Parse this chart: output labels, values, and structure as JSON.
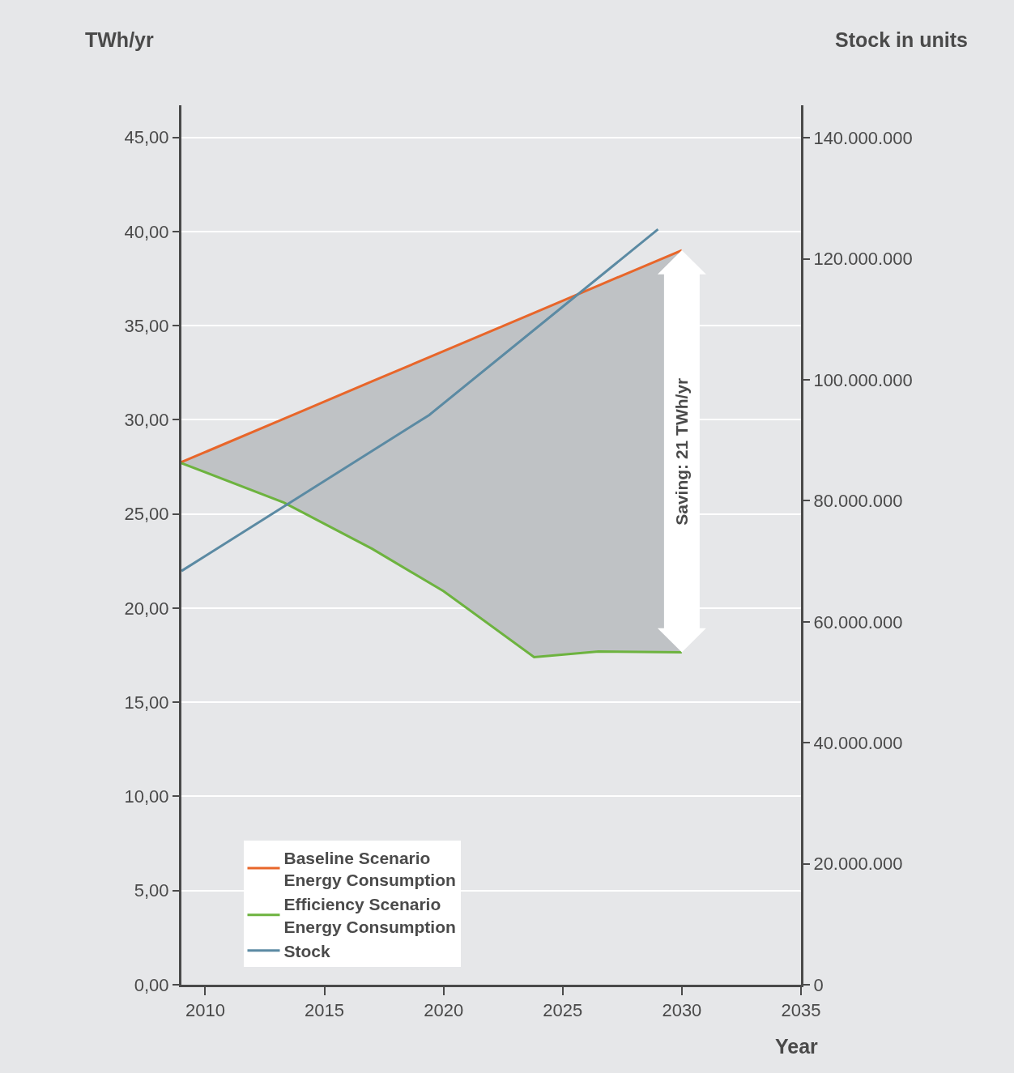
{
  "chart_data": {
    "type": "line",
    "xlabel": "Year",
    "ylabel": "TWh/yr",
    "y2label": "Stock in units",
    "xlim": [
      2009,
      2035
    ],
    "xticks": [
      2010,
      2015,
      2020,
      2025,
      2030,
      2035
    ],
    "ylim": [
      0,
      46.7
    ],
    "yticks": [
      {
        "value": 0,
        "label": "0,00"
      },
      {
        "value": 5,
        "label": "5,00"
      },
      {
        "value": 10,
        "label": "10,00"
      },
      {
        "value": 15,
        "label": "15,00"
      },
      {
        "value": 20,
        "label": "20,00"
      },
      {
        "value": 25,
        "label": "25,00"
      },
      {
        "value": 30,
        "label": "30,00"
      },
      {
        "value": 35,
        "label": "35,00"
      },
      {
        "value": 40,
        "label": "40,00"
      },
      {
        "value": 45,
        "label": "45,00"
      }
    ],
    "y2lim": [
      0,
      145400000
    ],
    "y2ticks": [
      0,
      {
        "value": 20000000,
        "label": "20.000.000"
      },
      {
        "value": 40000000,
        "label": "40.000.000"
      },
      {
        "value": 60000000,
        "label": "60.000.000"
      },
      {
        "value": 80000000,
        "label": "80.000.000"
      },
      {
        "value": 100000000,
        "label": "100.000.000"
      },
      {
        "value": 120000000,
        "label": "120.000.000"
      },
      {
        "value": 140000000,
        "label": "140.000.000"
      }
    ],
    "series": [
      {
        "name": "Baseline Scenario Energy Consumption",
        "color": "#e8662a",
        "x": [
          2009,
          2013.3,
          2017,
          2020,
          2023.8,
          2026.5,
          2030
        ],
        "values": [
          27.75,
          30.05,
          32.04,
          33.64,
          35.68,
          37.13,
          39.0
        ],
        "lower": [
          27.7,
          25.6,
          23.15,
          20.9,
          17.4,
          17.7,
          17.65
        ],
        "upper": [
          27.75,
          30.05,
          32.04,
          33.64,
          35.68,
          37.13,
          39.0
        ]
      },
      {
        "name": "Efficiency Scenario Energy Consumption",
        "color": "#6db33f",
        "x": [
          2009,
          2013.3,
          2017,
          2020,
          2023.8,
          2026.5,
          2030
        ],
        "values": [
          27.7,
          25.6,
          23.15,
          20.9,
          17.4,
          17.7,
          17.65
        ]
      },
      {
        "name": "Stock",
        "color": "#5b8aa3",
        "axis": "y2",
        "x": [
          2009,
          2019.4,
          2029
        ],
        "values": [
          68400000,
          94200000,
          124900000
        ]
      }
    ],
    "annotations": [
      {
        "text": "Saving: 21 TWh/yr",
        "x": 2030,
        "y": 28.3
      }
    ],
    "grid": "y",
    "legend": "bottom left"
  }
}
